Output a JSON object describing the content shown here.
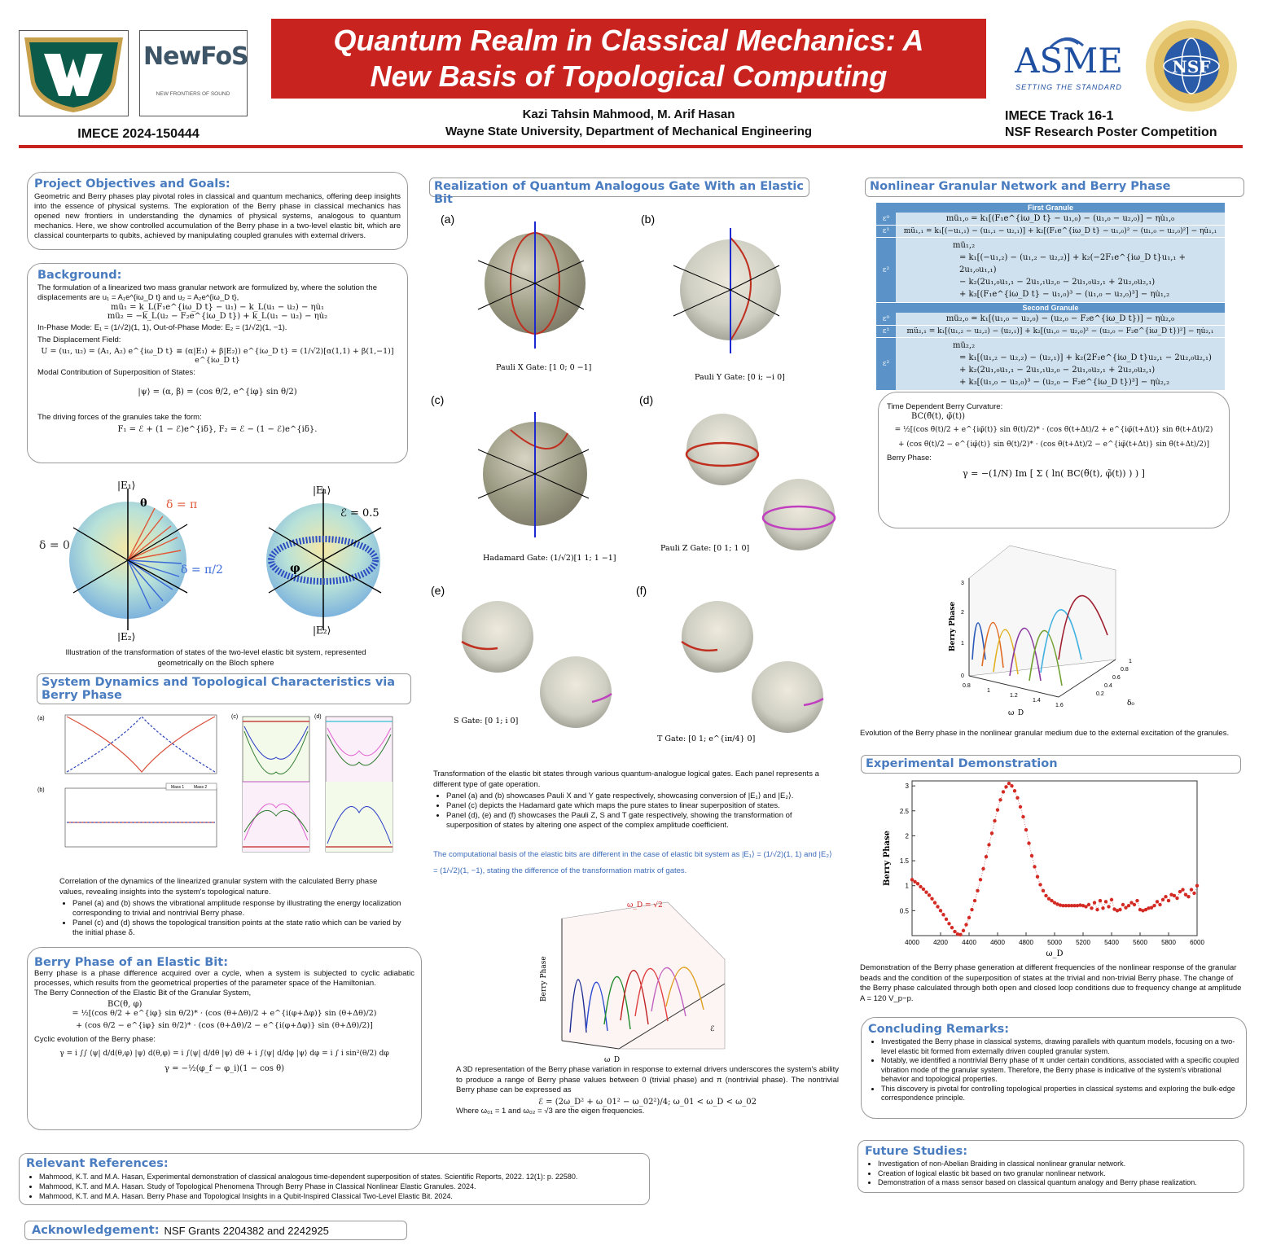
{
  "header": {
    "title_line1": "Quantum Realm in Classical Mechanics: A",
    "title_line2": "New Basis of Topological Computing",
    "authors": "Kazi Tahsin Mahmood, M. Arif Hasan",
    "affiliation": "Wayne State University, Department of Mechanical Engineering",
    "paper_id": "IMECE 2024-150444",
    "track_line1": "IMECE Track 16-1",
    "track_line2": "NSF Research Poster Competition",
    "logo_newfos": "NewFoS",
    "logo_newfos_sub": "NEW FRONTIERS OF SOUND",
    "logo_asme": "ASME",
    "logo_asme_sub": "SETTING THE STANDARD",
    "logo_nsf": "NSF"
  },
  "objectives": {
    "title": "Project Objectives and Goals:",
    "text": "Geometric and Berry phases play pivotal roles in classical and quantum mechanics, offering deep insights into the essence of physical systems. The exploration of the Berry phase in classical mechanics has opened new frontiers in understanding the dynamics of physical systems, analogous to quantum mechanics. Here, we show controlled accumulation of the Berry phase in a two-level elastic bit, which are classical counterparts to qubits, achieved by manipulating coupled granules with external drivers."
  },
  "background": {
    "title": "Background:",
    "line1": "The formulation of a linearized two mass granular network are formulized by, where the solution the displacements are u₁ = A₁e^{iω_D t} and u₂ = A₂e^{iω_D t},",
    "eq1": "mü₁ = k_L(F₁e^{iω_D t} − u₁) − k_L(u₁ − u₂) − ηu̇₁",
    "eq2": "mü₂ = −k_L(u₂ − F₂e^{iω_D t}) + k_L(u₁ − u₂) − ηu̇₂",
    "modes": "In-Phase Mode: E₁ = (1/√2)(1, 1), Out-of-Phase Mode: E₂ = (1/√2)(1, −1).",
    "disp_label": "The Displacement Field:",
    "disp_eq": "U = (u₁, u₂) = (A₁, A₂) e^{iω_D t} ≡ (α|E₁⟩ + β|E₂⟩) e^{iω_D t} = (1/√2)[α(1,1) + β(1,−1)] e^{iω_D t}",
    "modal_label": "Modal Contribution of Superposition of States:",
    "modal_eq": "|ψ⟩ = (α, β) = (cos θ/2, e^{iφ} sin θ/2)",
    "forces_label": "The driving forces of the granules take the form:",
    "forces_eq": "F₁ = ℰ + (1 − ℰ)e^{iδ},     F₂ = ℰ − (1 − ℰ)e^{iδ}."
  },
  "bloch_fig": {
    "caption": "Illustration of the transformation of states of the two-level elastic bit system, represented geometrically on the Bloch sphere",
    "labels": [
      "|E₁⟩",
      "|E₂⟩",
      "θ",
      "δ = π",
      "δ = 0",
      "δ = π/2",
      "ℰ = 0.5",
      "φ"
    ]
  },
  "system_dynamics": {
    "title": "System Dynamics and Topological Characteristics via Berry Phase",
    "caption": "Correlation of the dynamics of the linearized granular system with the calculated Berry phase values, revealing insights into the system's topological nature.",
    "bullets": [
      "Panel (a) and (b) shows the vibrational amplitude response by illustrating the energy localization corresponding to trivial and nontrivial Berry phase.",
      "Panel (c) and (d) shows the topological transition points at the state ratio which can be varied by the initial phase δ."
    ],
    "legend": [
      "Mass 1",
      "Mass 2"
    ],
    "panel_labels": [
      "(a)",
      "(b)",
      "(c)",
      "(d)"
    ]
  },
  "berry_elastic": {
    "title": "Berry Phase of an Elastic Bit:",
    "text": "Berry phase is a phase difference acquired over a cycle, when a system is subjected to cyclic adiabatic processes, which results from the geometrical properties of the parameter space of the Hamiltonian.",
    "conn_label": "The Berry Connection of the Elastic Bit of the Granular System,",
    "eq1": "BC(θ, φ)",
    "eq2": "= ½[(cos θ/2 + e^{iφ} sin θ/2)* · (cos (θ+Δθ)/2 + e^{i(φ+Δφ)} sin (θ+Δθ)/2)",
    "eq3": "+ (cos θ/2 − e^{iφ} sin θ/2)* · (cos (θ+Δθ)/2 − e^{i(φ+Δφ)} sin (θ+Δθ)/2)]",
    "cyc_label": "Cyclic evolution of the Berry phase:",
    "eq4": "γ = i ∫∫ ⟨ψ| d/d(θ,φ) |ψ⟩ d(θ,φ) = i ∫⟨ψ| d/dθ |ψ⟩ dθ + i ∫⟨ψ| d/dφ |ψ⟩ dφ = i ∫ i sin²(θ/2) dφ",
    "eq5": "γ = −½(φ_f − φ_i)(1 − cos θ)"
  },
  "gates": {
    "title": "Realization of Quantum Analogous Gate With an Elastic Bit",
    "panels": [
      {
        "label": "(a)",
        "gate": "Pauli X Gate: [1 0; 0 −1]"
      },
      {
        "label": "(b)",
        "gate": "Pauli Y Gate: [0 i; −i 0]"
      },
      {
        "label": "(c)",
        "gate": "Hadamard Gate: (1/√2)[1 1; 1 −1]"
      },
      {
        "label": "(d)",
        "gate": "Pauli Z Gate: [0 1; 1 0]"
      },
      {
        "label": "(e)",
        "gate": "S Gate: [0 1; i 0]"
      },
      {
        "label": "(f)",
        "gate": "T Gate: [0 1; e^{iπ/4} 0]"
      }
    ],
    "caption": "Transformation of the elastic bit states through various quantum-analogue logical gates. Each panel represents a different type of gate operation.",
    "bullets": [
      "Panel (a) and (b) showcases Pauli X and Y gate respectively,  showcasing conversion of |E₁⟩ and |E₂⟩.",
      "Panel (c) depicts the Hadamard gate which maps the pure states to linear superposition of states.",
      "Panel (d), (e) and (f) showcases the Pauli Z, S and T gate respectively, showing the transformation of superposition of states by altering one aspect of the complex amplitude coefficient."
    ],
    "basis_note": "The computational basis of the elastic bits are different in the case of elastic bit system as |E₁⟩ = (1/√2)(1, 1)  and |E₂⟩ = (1/√2)(1, −1), stating the difference of the transformation matrix of gates.",
    "surface_caption": "A 3D representation of the Berry phase variation in response to external drivers underscores the system's ability to produce a range of Berry phase values between 0 (trivial phase) and π (nontrivial phase). The nontrivial Berry phase can be expressed as",
    "surface_eq": "ℰ = (2ω_D² + ω_01² − ω_02²)/4;      ω_01 < ω_D < ω_02",
    "surface_note": "Where ω₀₁ = 1 and ω₀₂ = √3 are the eigen frequencies.",
    "surface_labels": [
      "Berry Phase",
      "ω_D",
      "ℰ",
      "ω_D = √2"
    ]
  },
  "nonlinear": {
    "title": "Nonlinear Granular Network and Berry Phase",
    "first_head": "First Granule",
    "second_head": "Second Granule",
    "eps0": "ε⁰",
    "eps1": "ε¹",
    "eps2": "ε²",
    "r1": "mü₁,₀ = k₁[(F₁e^{iω_D t} − u₁,₀) − (u₁,₀ − u₂,₀)] − ηu̇₁,₀",
    "r2": "mü₁,₁ = k₁[(−u₁,₁) − (u₁,₁ − u₂,₁)] + k₂[(F₁e^{iω_D t} − u₁,₀)² − (u₁,₀ − u₂,₀)²] − ηu̇₁,₁",
    "r3a": "mü₁,₂",
    "r3b": "= k₁[(−u₁,₂) − (u₁,₂ − u₂,₂)] + k₂(−2F₁e^{iω_D t}u₁,₁ + 2u₁,₀u₁,₁)",
    "r3c": "− k₂(2u₁,₀u₁,₁ − 2u₁,₁u₂,₀ − 2u₁,₀u₂,₁ + 2u₂,₀u₂,₁)",
    "r3d": "+ k₃[(F₁e^{iω_D t} − u₁,₀)³ − (u₁,₀ − u₂,₀)³] − ηu̇₁,₂",
    "s1": "mü₂,₀ = k₁[(u₁,₀ − u₂,₀) − (u₂,₀ − F₂e^{iω_D t})] − ηu̇₂,₀",
    "s2": "mü₂,₁ = k₁[(u₁,₂ − u₂,₂) − (u₂,₁)] + k₂[(u₁,₀ − u₂,₀)² − (u₂,₀ − F₂e^{iω_D t})²] − ηu̇₂,₁",
    "s3a": "mü₂,₂",
    "s3b": "= k₁[(u₁,₂ − u₂,₂) − (u₂,₁)] + k₂(2F₂e^{iω_D t}u₂,₁ − 2u₂,₀u₂,₁)",
    "s3c": "+ k₂(2u₁,₀u₁,₁ − 2u₁,₁u₂,₀ − 2u₁,₀u₂,₁ + 2u₂,₀u₂,₁)",
    "s3d": "+ k₃[(u₁,₀ − u₂,₀)³ − (u₂,₀ − F₂e^{iω_D t})³] − ηu̇₂,₂"
  },
  "curvature": {
    "label": "Time Dependent Berry Curvature:",
    "eq1": "BC(θ̃(t), φ̃(t))",
    "eq2": "= ½[(cos θ̃(t)/2 + e^{iφ̃(t)} sin θ̃(t)/2)* · (cos θ̃(t+Δt)/2 + e^{iφ̃(t+Δt)} sin θ̃(t+Δt)/2)",
    "eq3": "+ (cos θ̃(t)/2 − e^{iφ̃(t)} sin θ̃(t)/2)* · (cos θ̃(t+Δt)/2 − e^{iφ̃(t+Δt)} sin θ̃(t+Δt)/2)]",
    "bp_label": "Berry Phase:",
    "bp_eq": "γ = −(1/N) Im [ Σ ( ln( BC(θ̃(t), φ̃(t)) ) ) ]"
  },
  "evolution": {
    "caption": "Evolution of the Berry phase in the nonlinear granular medium due to the external excitation of the granules.",
    "zlabel": "Berry Phase",
    "xlabel": "ω_D",
    "ylabel": "δ₀",
    "zticks": [
      "0",
      "1",
      "2",
      "3"
    ],
    "xticks": [
      "0.8",
      "1",
      "1.2",
      "1.4",
      "1.6"
    ],
    "yticks": [
      "0.2",
      "0.4",
      "0.6",
      "0.8",
      "1"
    ]
  },
  "experimental": {
    "title": "Experimental Demonstration",
    "caption": "Demonstration of the Berry phase generation at different frequencies of the nonlinear response of the granular beads and the condition of the superposition of states at the trivial and non-trivial Berry phase. The change of the Berry phase calculated through both open and closed loop conditions due to frequency change at amplitude A = 120 V_p−p."
  },
  "concluding": {
    "title": "Concluding Remarks:",
    "bullets": [
      "Investigated the Berry phase in classical systems, drawing parallels with quantum models, focusing on a two-level elastic bit formed from externally driven coupled granular system.",
      "Notably, we identified a nontrivial Berry phase of π under certain conditions, associated with a specific coupled vibration mode of the granular system. Therefore, the Berry phase is indicative of the system's vibrational behavior and topological properties.",
      "This discovery is pivotal for controlling topological properties in classical systems and exploring the bulk-edge correspondence principle."
    ]
  },
  "future": {
    "title": "Future Studies:",
    "bullets": [
      "Investigation of non-Abelian Braiding in classical nonlinear granular network.",
      "Creation of logical elastic bit based on two granular nonlinear network.",
      "Demonstration of a mass sensor based on classical quantum analogy and Berry phase realization."
    ]
  },
  "references": {
    "title": "Relevant References:",
    "items": [
      "Mahmood, K.T. and M.A. Hasan, Experimental demonstration of classical analogous time-dependent superposition of states. Scientific Reports, 2022. 12(1): p. 22580.",
      "Mahmood, K.T. and M.A. Hasan. Study of Topological Phenomena Through Berry Phase in Classical Nonlinear Elastic Granules. 2024.",
      "Mahmood, K.T. and M.A. Hasan. Berry Phase and Topological Insights in a Qubit-Inspired Classical Two-Level Elastic Bit. 2024."
    ]
  },
  "acknowledgement": {
    "title": "Acknowledgement:",
    "text": "NSF Grants 2204382 and 2242925"
  },
  "chart_data": {
    "type": "scatter",
    "title": "",
    "xlabel": "ω_D",
    "ylabel": "Berry Phase",
    "xlim": [
      4000,
      6000
    ],
    "ylim": [
      0,
      3.1
    ],
    "xticks": [
      4000,
      4200,
      4400,
      4600,
      4800,
      5000,
      5200,
      5400,
      5600,
      5800,
      6000
    ],
    "yticks": [
      0.5,
      1,
      1.5,
      2,
      2.5,
      3
    ],
    "series": [
      {
        "x": [
          4000,
          4020,
          4040,
          4060,
          4080,
          4100,
          4120,
          4140,
          4160,
          4180,
          4200,
          4220,
          4240,
          4260,
          4280,
          4300,
          4320,
          4340,
          4360,
          4380,
          4400,
          4420,
          4440,
          4460,
          4480,
          4500,
          4520,
          4540,
          4560,
          4580,
          4600,
          4620,
          4640,
          4660,
          4680,
          4700,
          4720,
          4740,
          4760,
          4780,
          4800,
          4820,
          4840,
          4860,
          4880,
          4900,
          4920,
          4940,
          4960,
          4980,
          5000,
          5020,
          5040,
          5060,
          5080,
          5100,
          5120,
          5140,
          5160,
          5180,
          5200,
          5220,
          5240,
          5260,
          5280,
          5300,
          5320,
          5340,
          5360,
          5380,
          5400,
          5420,
          5440,
          5460,
          5480,
          5500,
          5520,
          5540,
          5560,
          5580,
          5600,
          5620,
          5640,
          5660,
          5680,
          5700,
          5720,
          5740,
          5760,
          5780,
          5800,
          5820,
          5840,
          5860,
          5880,
          5900,
          5920,
          5940,
          5960,
          5980,
          6000
        ],
        "values": [
          1.12,
          1.08,
          1.04,
          0.98,
          0.93,
          0.87,
          0.81,
          0.74,
          0.66,
          0.58,
          0.5,
          0.42,
          0.33,
          0.24,
          0.16,
          0.08,
          0.03,
          0.02,
          0.1,
          0.22,
          0.36,
          0.52,
          0.7,
          0.9,
          1.12,
          1.34,
          1.58,
          1.82,
          2.05,
          2.3,
          2.52,
          2.72,
          2.88,
          2.98,
          3.05,
          3.0,
          2.9,
          2.76,
          2.58,
          2.38,
          2.12,
          1.85,
          1.6,
          1.38,
          1.18,
          1.02,
          0.9,
          0.8,
          0.74,
          0.7,
          0.66,
          0.63,
          0.61,
          0.6,
          0.6,
          0.6,
          0.6,
          0.6,
          0.6,
          0.61,
          0.6,
          0.58,
          0.62,
          0.55,
          0.66,
          0.52,
          0.7,
          0.55,
          0.68,
          0.58,
          0.72,
          0.53,
          0.5,
          0.52,
          0.62,
          0.56,
          0.6,
          0.66,
          0.62,
          0.7,
          0.52,
          0.5,
          0.52,
          0.55,
          0.56,
          0.6,
          0.68,
          0.62,
          0.72,
          0.78,
          0.7,
          0.82,
          0.8,
          0.75,
          0.88,
          0.92,
          0.82,
          0.78,
          0.92,
          0.85,
          1.0
        ]
      }
    ]
  }
}
